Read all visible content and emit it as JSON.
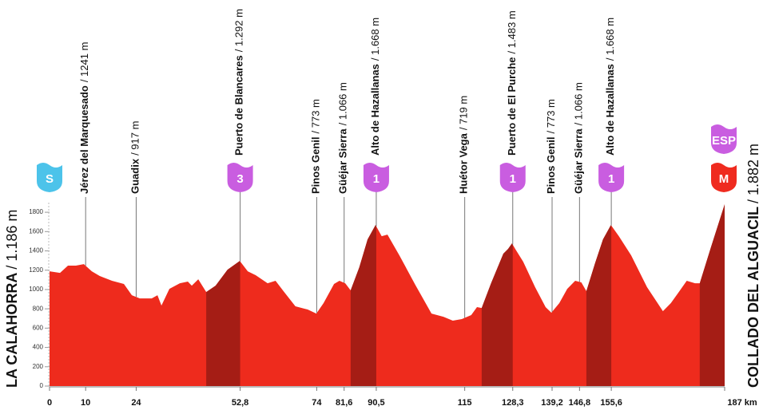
{
  "chart_data": {
    "type": "area",
    "x": [
      0,
      2.9,
      5.1,
      7.3,
      9.5,
      11.7,
      13.9,
      17.3,
      20.6,
      22.8,
      25,
      28.3,
      29.9,
      31,
      33.2,
      36.1,
      38.3,
      39.4,
      41.2,
      43.4,
      46,
      49.3,
      52.7,
      54.9,
      57.1,
      60.4,
      62.6,
      64.8,
      68.1,
      71.5,
      73.9,
      75.9,
      78.8,
      80.3,
      81.9,
      83.4,
      85.8,
      88.1,
      90.3,
      92,
      93.6,
      96.9,
      101.3,
      105.8,
      109.1,
      111.7,
      114.2,
      116.8,
      118.4,
      119.7,
      122.3,
      125.7,
      127,
      128.1,
      129,
      131.2,
      134.5,
      137.4,
      139,
      141.2,
      143.4,
      145.6,
      147.3,
      148.7,
      151.1,
      153.3,
      155.5,
      157.7,
      161.1,
      165.5,
      169.9,
      172.1,
      174.3,
      176.5,
      178.8,
      180.1,
      183.2,
      187
    ],
    "values": [
      1189,
      1172,
      1247,
      1247,
      1263,
      1189,
      1140,
      1090,
      1057,
      941,
      908,
      908,
      941,
      834,
      1007,
      1065,
      1082,
      1040,
      1106,
      974,
      1040,
      1205,
      1296,
      1189,
      1148,
      1065,
      1090,
      983,
      826,
      793,
      751,
      859,
      1057,
      1090,
      1065,
      991,
      1230,
      1519,
      1668,
      1552,
      1569,
      1354,
      1049,
      751,
      718,
      677,
      694,
      735,
      818,
      809,
      1065,
      1371,
      1420,
      1478,
      1420,
      1288,
      1024,
      818,
      760,
      859,
      1007,
      1090,
      1074,
      983,
      1272,
      1519,
      1668,
      1552,
      1354,
      1024,
      776,
      859,
      974,
      1090,
      1065,
      1065,
      1437,
      1882
    ],
    "color": "#ee2b1d",
    "climb_color": "#a51d15",
    "climbs": [
      {
        "start": 43.4,
        "end": 52.8
      },
      {
        "start": 83.4,
        "end": 90.5
      },
      {
        "start": 119.7,
        "end": 128.3
      },
      {
        "start": 148.7,
        "end": 155.6
      },
      {
        "start": 180.1,
        "end": 187
      }
    ],
    "xlim": [
      0,
      187
    ],
    "ylim": [
      0,
      1900
    ],
    "xticks": [
      0,
      10,
      24,
      {
        "value": 52.8,
        "label": "52,8"
      },
      74,
      {
        "value": 81.6,
        "label": "81,6"
      },
      {
        "value": 90.5,
        "label": "90,5"
      },
      115,
      {
        "value": 128.3,
        "label": "128,3"
      },
      {
        "value": 139.2,
        "label": "139,2"
      },
      {
        "value": 146.8,
        "label": "146,8"
      },
      {
        "value": 155.6,
        "label": "155,6"
      },
      {
        "value": 187,
        "label": "187 km"
      }
    ],
    "yticks": [
      0,
      200,
      400,
      600,
      800,
      1000,
      1200,
      1400,
      1600,
      1800
    ],
    "start": {
      "name": "LA CALAHORRA",
      "altitude": "/ 1.186 m",
      "badge": "S",
      "badge_color": "#4cc3ea"
    },
    "finish": {
      "name": "COLLADO DEL ALGUACIL",
      "altitude": "/ 1.882 m",
      "badges": [
        {
          "text": "ESP",
          "color": "#c95de0"
        },
        {
          "text": "M",
          "color": "#ef2b1f"
        }
      ]
    },
    "waypoints": [
      {
        "km": 10,
        "name": "Jérez del Marquesado",
        "altitude": "/ 1241 m"
      },
      {
        "km": 24,
        "name": "Guadix",
        "altitude": "/ 917 m"
      },
      {
        "km": 52.8,
        "name": "Puerto de Blancares",
        "altitude": "/ 1.292 m",
        "badge": "3",
        "badge_color": "#c95de0"
      },
      {
        "km": 74,
        "name": "Pinos Genil",
        "altitude": "/ 773 m"
      },
      {
        "km": 81.6,
        "name": "Güéjar Sierra",
        "altitude": "/ 1.066 m"
      },
      {
        "km": 90.5,
        "name": "Alto de Hazallanas",
        "altitude": "/ 1.668 m",
        "badge": "1",
        "badge_color": "#c95de0"
      },
      {
        "km": 115,
        "name": "Huétor Vega",
        "altitude": "/ 719 m"
      },
      {
        "km": 128.3,
        "name": "Puerto de El Purche",
        "altitude": "/ 1.483 m",
        "badge": "1",
        "badge_color": "#c95de0"
      },
      {
        "km": 139.2,
        "name": "Pinos Genil",
        "altitude": "/ 773 m"
      },
      {
        "km": 146.8,
        "name": "Güéjar Sierra",
        "altitude": "/ 1.066 m"
      },
      {
        "km": 155.6,
        "name": "Alto de Hazallanas",
        "altitude": "/ 1.668 m",
        "badge": "1",
        "badge_color": "#c95de0"
      }
    ]
  }
}
